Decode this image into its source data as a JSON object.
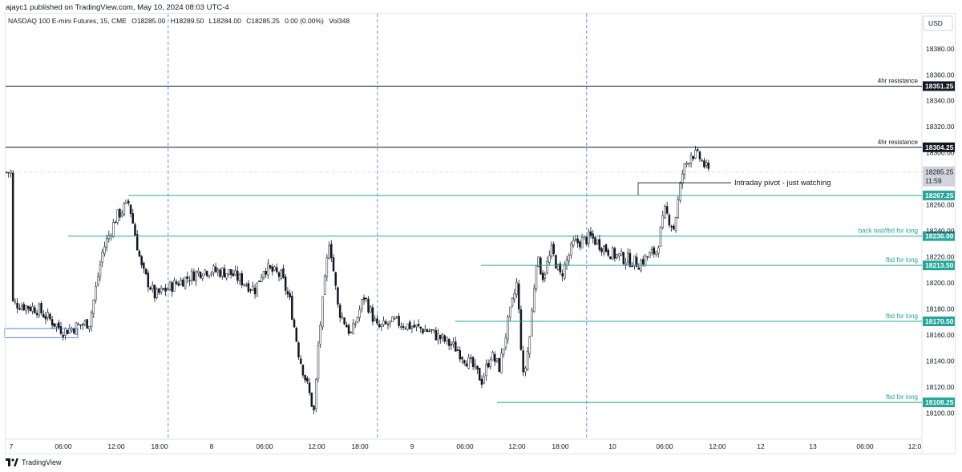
{
  "header": {
    "published": "ajayc1 published on TradingView.com, May 10, 2024 08:03 UTC-4",
    "symbol": "NASDAQ 100 E-mini Futures, 15, CME",
    "open": "O18285.00",
    "high": "H18289.50",
    "low": "L18284.00",
    "close": "C18285.25",
    "change": "0.00 (0.00%)",
    "volume": "Vol348"
  },
  "price_axis": {
    "currency": "USD",
    "ticks": [
      "18380.00",
      "18360.00",
      "18340.00",
      "18320.00",
      "18300.00",
      "18260.00",
      "18240.00",
      "18220.00",
      "18200.00",
      "18180.00",
      "18160.00",
      "18140.00",
      "18120.00",
      "18100.00"
    ]
  },
  "time_axis": {
    "labels": [
      "7",
      "06:00",
      "12:00",
      "18:00",
      "8",
      "06:00",
      "12:00",
      "18:00",
      "9",
      "06:00",
      "12:00",
      "18:00",
      "10",
      "06:00",
      "12:00",
      "12",
      "13",
      "06:00",
      "12:0"
    ]
  },
  "last_price": {
    "price": "18285.25",
    "countdown": "11:59"
  },
  "footer": {
    "brand": "TradingView"
  },
  "colors": {
    "resistance": "#131722",
    "support": "#26a69a",
    "session": "#2962ff",
    "candle": "#131722"
  },
  "chart_data": {
    "type": "candlestick",
    "title": "NASDAQ 100 E-mini Futures, 15, CME",
    "ylim": [
      18095,
      18390
    ],
    "x_range": [
      "May 7",
      "May 13"
    ],
    "levels": [
      {
        "price": 18351.25,
        "label": "18351.25",
        "note": "4hr resistance",
        "kind": "resistance"
      },
      {
        "price": 18304.25,
        "label": "18304.25",
        "note": "4hr resistance",
        "kind": "resistance"
      },
      {
        "price": 18267.25,
        "label": "18267.25",
        "note": "",
        "kind": "support"
      },
      {
        "price": 18236.0,
        "label": "18236.00",
        "note": "back test/fbd for long",
        "kind": "support"
      },
      {
        "price": 18213.5,
        "label": "18213.50",
        "note": "fbd for long",
        "kind": "support"
      },
      {
        "price": 18170.5,
        "label": "18170.50",
        "note": "fbd for long",
        "kind": "support"
      },
      {
        "price": 18108.25,
        "label": "18108.25",
        "note": "fbd for long",
        "kind": "support"
      }
    ],
    "pivot_note": "Intraday pivot - just watching",
    "path_points": [
      [
        "May 7 00:00",
        18185
      ],
      [
        "May 7 03:00",
        18180
      ],
      [
        "May 7 06:00",
        18163
      ],
      [
        "May 7 09:00",
        18170
      ],
      [
        "May 7 10:30",
        18225
      ],
      [
        "May 7 12:00",
        18250
      ],
      [
        "May 7 13:30",
        18262
      ],
      [
        "May 7 15:00",
        18210
      ],
      [
        "May 7 16:30",
        18190
      ],
      [
        "May 7 19:00",
        18200
      ],
      [
        "May 7 22:00",
        18210
      ],
      [
        "May 8 01:00",
        18208
      ],
      [
        "May 8 04:00",
        18195
      ],
      [
        "May 8 05:00",
        18212
      ],
      [
        "May 8 07:00",
        18205
      ],
      [
        "May 8 08:00",
        18185
      ],
      [
        "May 8 09:00",
        18145
      ],
      [
        "May 8 10:00",
        18120
      ],
      [
        "May 8 10:45",
        18100
      ],
      [
        "May 8 11:15",
        18155
      ],
      [
        "May 8 12:30",
        18235
      ],
      [
        "May 8 13:30",
        18180
      ],
      [
        "May 8 15:00",
        18160
      ],
      [
        "May 8 16:30",
        18190
      ],
      [
        "May 8 18:00",
        18165
      ],
      [
        "May 8 20:00",
        18170
      ],
      [
        "May 9 00:00",
        18163
      ],
      [
        "May 9 03:00",
        18150
      ],
      [
        "May 9 05:00",
        18135
      ],
      [
        "May 9 06:00",
        18125
      ],
      [
        "May 9 07:00",
        18145
      ],
      [
        "May 9 08:00",
        18135
      ],
      [
        "May 9 09:00",
        18170
      ],
      [
        "May 9 10:00",
        18200
      ],
      [
        "May 9 10:45",
        18125
      ],
      [
        "May 9 11:30",
        18160
      ],
      [
        "May 9 12:15",
        18220
      ],
      [
        "May 9 13:00",
        18205
      ],
      [
        "May 9 14:00",
        18225
      ],
      [
        "May 9 15:00",
        18205
      ],
      [
        "May 9 16:30",
        18230
      ],
      [
        "May 9 18:30",
        18235
      ],
      [
        "May 9 21:00",
        18222
      ],
      [
        "May 10 00:00",
        18215
      ],
      [
        "May 10 02:00",
        18225
      ],
      [
        "May 10 03:00",
        18255
      ],
      [
        "May 10 04:00",
        18242
      ],
      [
        "May 10 05:00",
        18285
      ],
      [
        "May 10 06:00",
        18300
      ],
      [
        "May 10 07:00",
        18296
      ],
      [
        "May 10 08:00",
        18285
      ]
    ]
  }
}
